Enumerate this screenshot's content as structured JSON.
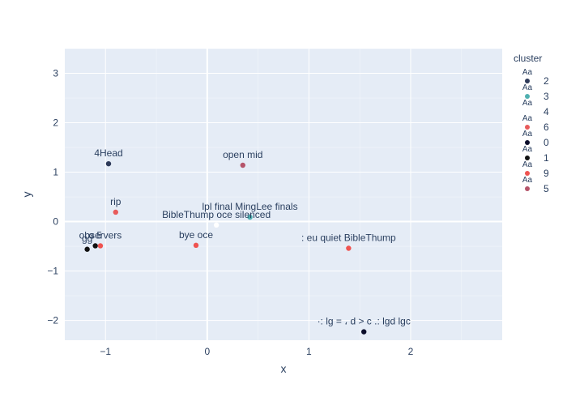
{
  "chart_data": {
    "type": "scatter",
    "xlabel": "x",
    "ylabel": "y",
    "xlim": [
      -1.4,
      2.9
    ],
    "ylim": [
      -2.4,
      3.5
    ],
    "xticks": [
      -1,
      0,
      1,
      2
    ],
    "xtick_labels": [
      "−1",
      "0",
      "1",
      "2"
    ],
    "yticks": [
      -2,
      -1,
      0,
      1,
      2,
      3
    ],
    "ytick_labels": [
      "−2",
      "−1",
      "0",
      "1",
      "2",
      "3"
    ],
    "grid": true,
    "legend_title": "cluster",
    "legend_placement": "right",
    "legend_marker_text": "Aa",
    "colors": {
      "plot_bg": "#e5ecf6",
      "grid": "#ffffff",
      "text": "#2a3f5f"
    },
    "series": [
      {
        "name": "2",
        "color": "#2e3a59",
        "points": [
          {
            "x": -0.97,
            "y": 1.17,
            "label": "4Head"
          }
        ]
      },
      {
        "name": "3",
        "color": "#4fb0b0",
        "points": [
          {
            "x": 0.42,
            "y": 0.09,
            "label": "lpl final MingLee finals"
          }
        ]
      },
      {
        "name": "4",
        "color": "#ffffff",
        "points": [
          {
            "x": 0.09,
            "y": -0.07,
            "label": "BibleThump oce silenced"
          }
        ]
      },
      {
        "name": "6",
        "color": "#e85b5b",
        "points": [
          {
            "x": -0.9,
            "y": 0.19,
            "label": "rip"
          }
        ]
      },
      {
        "name": "0",
        "color": "#0b0d2a",
        "points": [
          {
            "x": 1.54,
            "y": -2.23,
            "label": "·: lg = ، d > c .: lgd lgc"
          }
        ]
      },
      {
        "name": "1",
        "color": "#111111",
        "points": [
          {
            "x": -1.18,
            "y": -0.56,
            "label": "gg"
          },
          {
            "x": -1.1,
            "y": -0.49,
            "label": "o 5"
          }
        ]
      },
      {
        "name": "9",
        "color": "#ef5350",
        "points": [
          {
            "x": -1.05,
            "y": -0.49,
            "label": "observers"
          },
          {
            "x": -0.11,
            "y": -0.48,
            "label": "bye oce"
          },
          {
            "x": 1.39,
            "y": -0.54,
            "label": ": eu quiet BibleThump"
          }
        ]
      },
      {
        "name": "5",
        "color": "#b5546a",
        "points": [
          {
            "x": 0.35,
            "y": 1.14,
            "label": "open mid"
          }
        ]
      }
    ]
  }
}
